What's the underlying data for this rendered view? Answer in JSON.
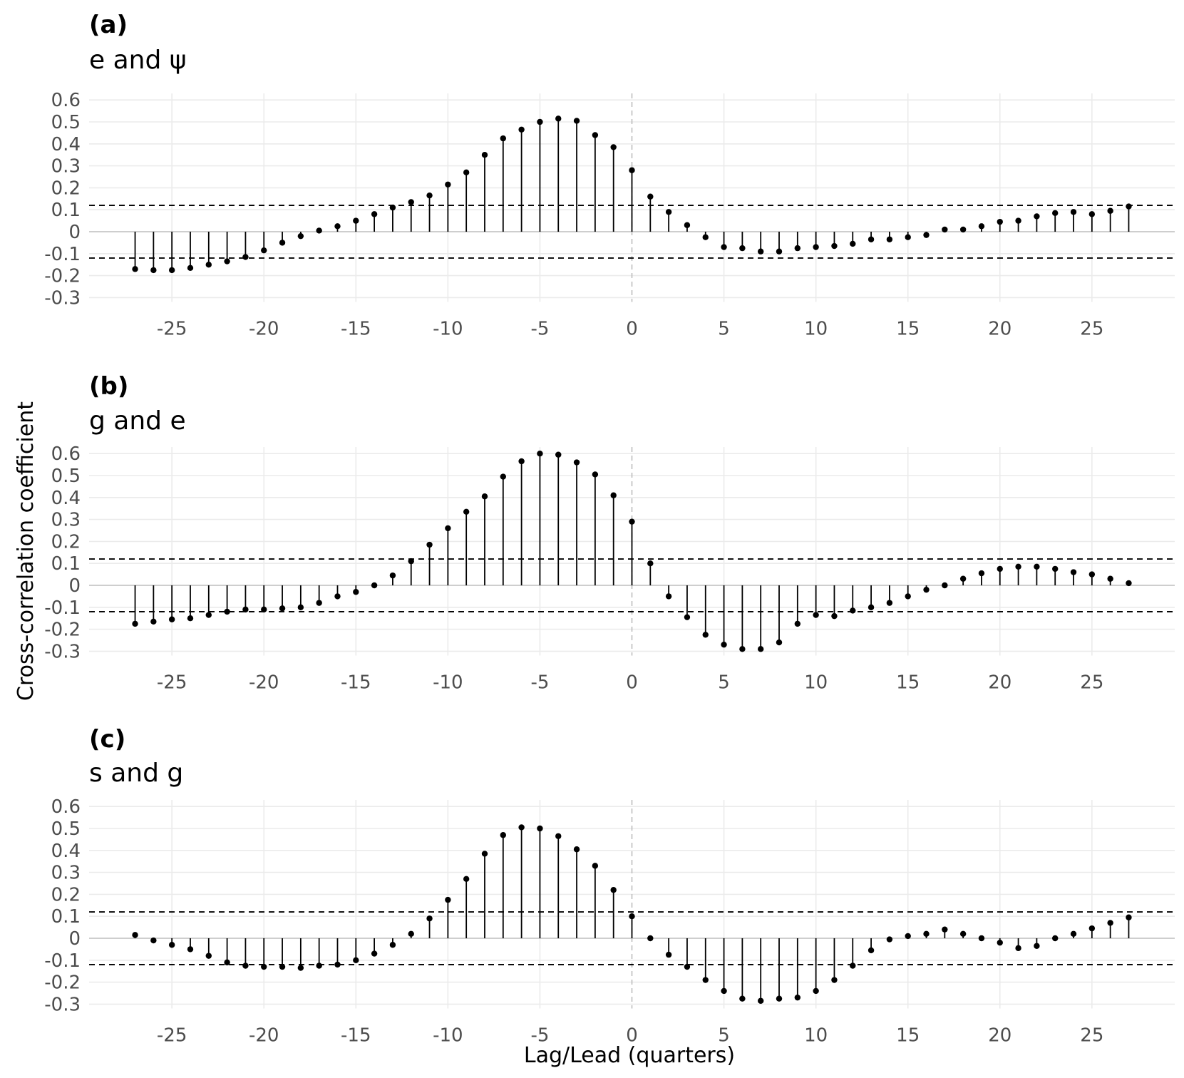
{
  "figure": {
    "ylabel": "Cross-correlation coefficient",
    "xlabel": "Lag/Lead (quarters)"
  },
  "chart_data": [
    {
      "type": "lollipop",
      "panel_label": "(a)",
      "title": "e and ψ",
      "xlabel": "Lag/Lead (quarters)",
      "ylabel": "Cross-correlation coefficient",
      "xlim": [
        -29.5,
        29.5
      ],
      "ylim": [
        -0.32,
        0.63
      ],
      "xticks": [
        -25,
        -20,
        -15,
        -10,
        -5,
        0,
        5,
        10,
        15,
        20,
        25
      ],
      "xtick_labels": [
        "-25",
        "-20",
        "-15",
        "-10",
        "-5",
        "0",
        "5",
        "10",
        "15",
        "20",
        "25"
      ],
      "yticks": [
        -0.3,
        -0.2,
        -0.1,
        0,
        0.1,
        0.2,
        0.3,
        0.4,
        0.5,
        0.6
      ],
      "ytick_labels": [
        "-0.3",
        "-0.2",
        "-0.1",
        "0",
        "0.1",
        "0.2",
        "0.3",
        "0.4",
        "0.5",
        "0.6"
      ],
      "confidence_bounds": [
        -0.12,
        0.12
      ],
      "x": [
        -27,
        -26,
        -25,
        -24,
        -23,
        -22,
        -21,
        -20,
        -19,
        -18,
        -17,
        -16,
        -15,
        -14,
        -13,
        -12,
        -11,
        -10,
        -9,
        -8,
        -7,
        -6,
        -5,
        -4,
        -3,
        -2,
        -1,
        0,
        1,
        2,
        3,
        4,
        5,
        6,
        7,
        8,
        9,
        10,
        11,
        12,
        13,
        14,
        15,
        16,
        17,
        18,
        19,
        20,
        21,
        22,
        23,
        24,
        25,
        26,
        27
      ],
      "values": [
        -0.17,
        -0.175,
        -0.175,
        -0.165,
        -0.15,
        -0.135,
        -0.115,
        -0.085,
        -0.05,
        -0.02,
        0.005,
        0.025,
        0.05,
        0.08,
        0.11,
        0.135,
        0.165,
        0.215,
        0.27,
        0.35,
        0.425,
        0.465,
        0.5,
        0.515,
        0.505,
        0.44,
        0.385,
        0.28,
        0.16,
        0.09,
        0.03,
        -0.025,
        -0.07,
        -0.075,
        -0.09,
        -0.09,
        -0.075,
        -0.07,
        -0.065,
        -0.055,
        -0.035,
        -0.035,
        -0.025,
        -0.015,
        0.01,
        0.01,
        0.025,
        0.045,
        0.05,
        0.07,
        0.085,
        0.09,
        0.08,
        0.095,
        0.115
      ]
    },
    {
      "type": "lollipop",
      "panel_label": "(b)",
      "title": "g and e",
      "xlabel": "Lag/Lead (quarters)",
      "ylabel": "Cross-correlation coefficient",
      "xlim": [
        -29.5,
        29.5
      ],
      "ylim": [
        -0.32,
        0.63
      ],
      "xticks": [
        -25,
        -20,
        -15,
        -10,
        -5,
        0,
        5,
        10,
        15,
        20,
        25
      ],
      "xtick_labels": [
        "-25",
        "-20",
        "-15",
        "-10",
        "-5",
        "0",
        "5",
        "10",
        "15",
        "20",
        "25"
      ],
      "yticks": [
        -0.3,
        -0.2,
        -0.1,
        0,
        0.1,
        0.2,
        0.3,
        0.4,
        0.5,
        0.6
      ],
      "ytick_labels": [
        "-0.3",
        "-0.2",
        "-0.1",
        "0",
        "0.1",
        "0.2",
        "0.3",
        "0.4",
        "0.5",
        "0.6"
      ],
      "confidence_bounds": [
        -0.12,
        0.12
      ],
      "x": [
        -27,
        -26,
        -25,
        -24,
        -23,
        -22,
        -21,
        -20,
        -19,
        -18,
        -17,
        -16,
        -15,
        -14,
        -13,
        -12,
        -11,
        -10,
        -9,
        -8,
        -7,
        -6,
        -5,
        -4,
        -3,
        -2,
        -1,
        0,
        1,
        2,
        3,
        4,
        5,
        6,
        7,
        8,
        9,
        10,
        11,
        12,
        13,
        14,
        15,
        16,
        17,
        18,
        19,
        20,
        21,
        22,
        23,
        24,
        25,
        26,
        27
      ],
      "values": [
        -0.175,
        -0.165,
        -0.155,
        -0.15,
        -0.135,
        -0.12,
        -0.11,
        -0.11,
        -0.105,
        -0.1,
        -0.08,
        -0.05,
        -0.03,
        0.0,
        0.045,
        0.11,
        0.185,
        0.26,
        0.335,
        0.405,
        0.495,
        0.565,
        0.6,
        0.595,
        0.56,
        0.505,
        0.41,
        0.29,
        0.1,
        -0.05,
        -0.145,
        -0.225,
        -0.27,
        -0.29,
        -0.29,
        -0.26,
        -0.175,
        -0.135,
        -0.14,
        -0.115,
        -0.1,
        -0.08,
        -0.05,
        -0.02,
        0.0,
        0.03,
        0.055,
        0.075,
        0.085,
        0.085,
        0.075,
        0.06,
        0.05,
        0.03,
        0.01
      ]
    },
    {
      "type": "lollipop",
      "panel_label": "(c)",
      "title": "s and g",
      "xlabel": "Lag/Lead (quarters)",
      "ylabel": "Cross-correlation coefficient",
      "xlim": [
        -29.5,
        29.5
      ],
      "ylim": [
        -0.32,
        0.63
      ],
      "xticks": [
        -25,
        -20,
        -15,
        -10,
        -5,
        0,
        5,
        10,
        15,
        20,
        25
      ],
      "xtick_labels": [
        "-25",
        "-20",
        "-15",
        "-10",
        "-5",
        "0",
        "5",
        "10",
        "15",
        "20",
        "25"
      ],
      "yticks": [
        -0.3,
        -0.2,
        -0.1,
        0,
        0.1,
        0.2,
        0.3,
        0.4,
        0.5,
        0.6
      ],
      "ytick_labels": [
        "-0.3",
        "-0.2",
        "-0.1",
        "0",
        "0.1",
        "0.2",
        "0.3",
        "0.4",
        "0.5",
        "0.6"
      ],
      "confidence_bounds": [
        -0.12,
        0.12
      ],
      "x": [
        -27,
        -26,
        -25,
        -24,
        -23,
        -22,
        -21,
        -20,
        -19,
        -18,
        -17,
        -16,
        -15,
        -14,
        -13,
        -12,
        -11,
        -10,
        -9,
        -8,
        -7,
        -6,
        -5,
        -4,
        -3,
        -2,
        -1,
        0,
        1,
        2,
        3,
        4,
        5,
        6,
        7,
        8,
        9,
        10,
        11,
        12,
        13,
        14,
        15,
        16,
        17,
        18,
        19,
        20,
        21,
        22,
        23,
        24,
        25,
        26,
        27
      ],
      "values": [
        0.015,
        -0.01,
        -0.03,
        -0.05,
        -0.08,
        -0.11,
        -0.125,
        -0.13,
        -0.13,
        -0.135,
        -0.125,
        -0.12,
        -0.1,
        -0.07,
        -0.03,
        0.02,
        0.09,
        0.175,
        0.27,
        0.385,
        0.47,
        0.505,
        0.5,
        0.465,
        0.405,
        0.33,
        0.22,
        0.1,
        0.0,
        -0.075,
        -0.13,
        -0.19,
        -0.24,
        -0.275,
        -0.285,
        -0.275,
        -0.27,
        -0.24,
        -0.19,
        -0.125,
        -0.055,
        -0.005,
        0.01,
        0.02,
        0.04,
        0.02,
        0.0,
        -0.02,
        -0.045,
        -0.035,
        0.0,
        0.02,
        0.045,
        0.07,
        0.095
      ]
    }
  ]
}
